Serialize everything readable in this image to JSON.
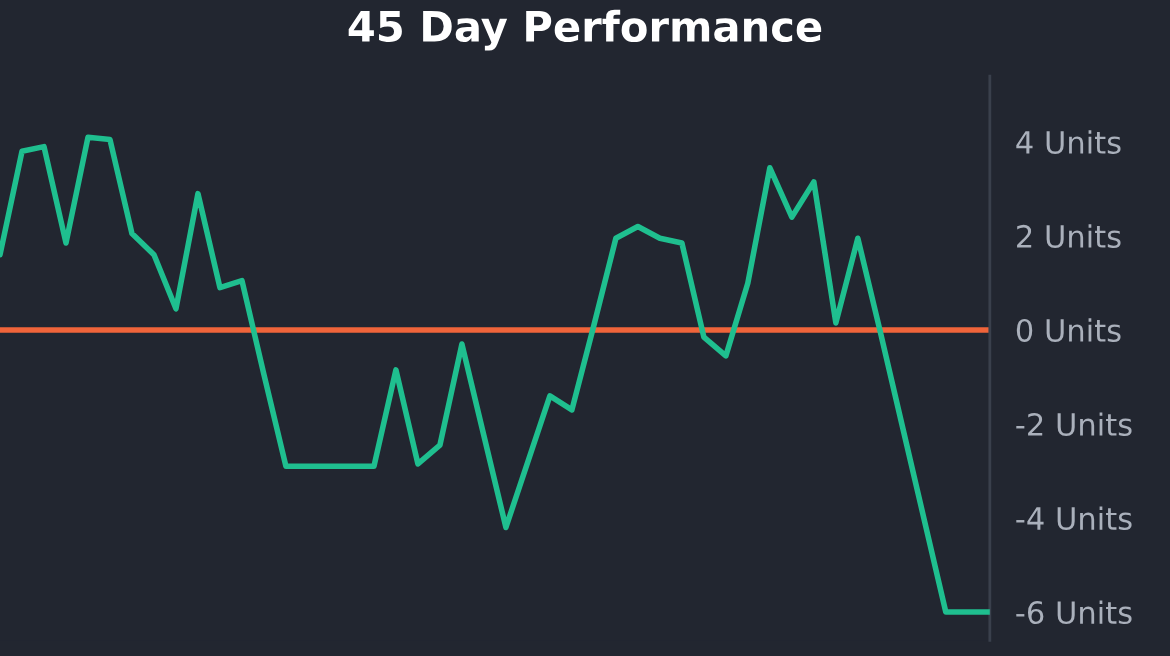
{
  "chart_data": {
    "type": "line",
    "title": "45 Day Performance",
    "categories": [
      null,
      null,
      null,
      null,
      null,
      null,
      null,
      null,
      null,
      null,
      null,
      null,
      null,
      null,
      null,
      null,
      null,
      null,
      null,
      null,
      null,
      null,
      null,
      null,
      null,
      null,
      null,
      null,
      null,
      null,
      null,
      null,
      null,
      null,
      null,
      null,
      null,
      null,
      null,
      null,
      null,
      null,
      null,
      null,
      null,
      null
    ],
    "series": [
      {
        "color": "#1fbf8f",
        "values": [
          1.6,
          3.8,
          3.9,
          1.85,
          4.1,
          4.05,
          2.05,
          1.6,
          0.45,
          2.9,
          0.9,
          1.05,
          -0.95,
          -2.9,
          -2.9,
          -2.9,
          -2.9,
          -2.9,
          -0.85,
          -2.85,
          -2.45,
          -0.3,
          -2.25,
          -4.2,
          -2.8,
          -1.4,
          -1.7,
          0.1,
          1.95,
          2.2,
          1.95,
          1.85,
          -0.15,
          -0.55,
          1.0,
          3.45,
          2.4,
          3.15,
          0.15,
          1.95,
          0.0,
          -2.0,
          -4.0,
          -6.0,
          -6.0,
          -6.0
        ]
      }
    ],
    "ylim": [
      -6.6,
      5.4
    ],
    "yticks": [
      {
        "value": 4,
        "label": "4 Units"
      },
      {
        "value": 2,
        "label": "2 Units"
      },
      {
        "value": 0,
        "label": "0 Units"
      },
      {
        "value": -2,
        "label": "-2 Units"
      },
      {
        "value": -4,
        "label": "-4 Units"
      },
      {
        "value": -6,
        "label": "-6 Units"
      }
    ],
    "tick_labels": "y",
    "ref_lines": [
      {
        "axis": "y",
        "value": 0,
        "color": "#f0643a"
      }
    ],
    "grid": false,
    "legend": false,
    "marker": "none",
    "line_style": "solid"
  }
}
